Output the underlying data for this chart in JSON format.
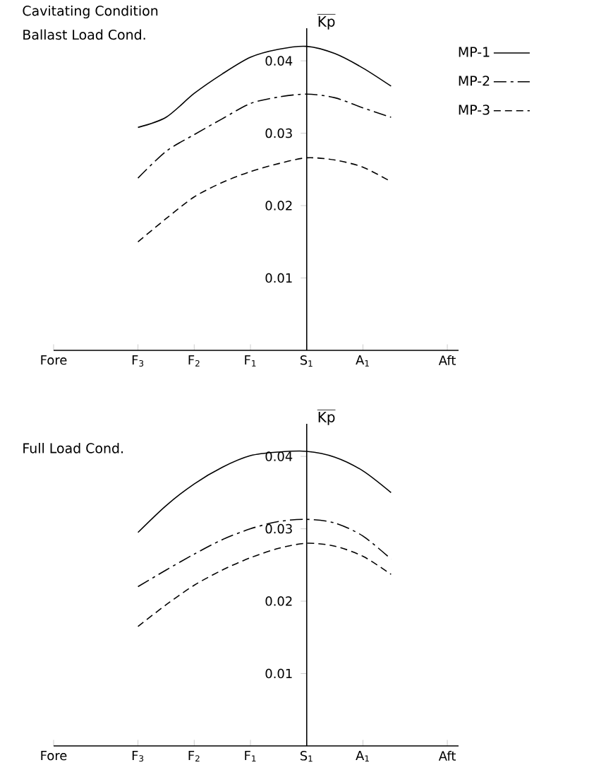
{
  "chart_data": [
    {
      "type": "line",
      "title": "Cavitating Condition",
      "subtitle": "Ballast Load Cond.",
      "ylabel": "\\overline{\\mathrm{Kp}}",
      "categories": [
        "Fore",
        null,
        null,
        "F$_{3}$",
        null,
        "F$_{2}$",
        null,
        "F$_{1}$",
        null,
        "S$_{1}$",
        null,
        "A$_{1}$",
        null,
        null,
        "Aft"
      ],
      "ylim": [
        0,
        0.0445
      ],
      "yticks": [
        0.01,
        0.02,
        0.03,
        0.04
      ],
      "legend": "top right",
      "series": [
        {
          "name": "MP-1",
          "color": "#000000",
          "line_style": "solid",
          "values": [
            null,
            null,
            null,
            0.0308,
            0.0322,
            0.0355,
            0.0382,
            0.0405,
            0.0416,
            0.042,
            0.041,
            0.039,
            0.0365,
            null,
            null
          ]
        },
        {
          "name": "MP-2",
          "color": "#000000",
          "line_style": "dashdot",
          "values": [
            null,
            null,
            null,
            0.0238,
            0.0275,
            0.0298,
            0.032,
            0.0341,
            0.035,
            0.0354,
            0.0349,
            0.0335,
            0.0322,
            null,
            null
          ]
        },
        {
          "name": "MP-3",
          "color": "#000000",
          "line_style": "dashed",
          "values": [
            null,
            null,
            null,
            0.015,
            0.0182,
            0.0212,
            0.0232,
            0.0247,
            0.0258,
            0.0266,
            0.0263,
            0.0253,
            0.0233,
            null,
            null
          ]
        }
      ]
    },
    {
      "type": "line",
      "title": "Full Load Cond.",
      "ylabel": "\\overline{\\mathrm{Kp}}",
      "categories": [
        "Fore",
        null,
        null,
        "F$_{3}$",
        null,
        "F$_{2}$",
        null,
        "F$_{1}$",
        null,
        "S$_{1}$",
        null,
        "A$_{1}$",
        null,
        null,
        "Aft"
      ],
      "ylim": [
        0,
        0.0445
      ],
      "yticks": [
        0.01,
        0.02,
        0.03,
        0.04
      ],
      "series": [
        {
          "color": "#000000",
          "line_style": "solid",
          "values": [
            null,
            null,
            null,
            0.0295,
            0.0332,
            0.0362,
            0.0385,
            0.0401,
            0.0406,
            0.0407,
            0.0399,
            0.038,
            0.035,
            null,
            null
          ]
        },
        {
          "color": "#000000",
          "line_style": "dashdot",
          "values": [
            null,
            null,
            null,
            0.022,
            0.0243,
            0.0265,
            0.0285,
            0.03,
            0.031,
            0.0313,
            0.0308,
            0.029,
            0.0258,
            null,
            null
          ]
        },
        {
          "color": "#000000",
          "line_style": "dashed",
          "values": [
            null,
            null,
            null,
            0.0165,
            0.0195,
            0.0222,
            0.0243,
            0.026,
            0.0273,
            0.028,
            0.0276,
            0.0262,
            0.0237,
            null,
            null
          ]
        }
      ]
    }
  ]
}
